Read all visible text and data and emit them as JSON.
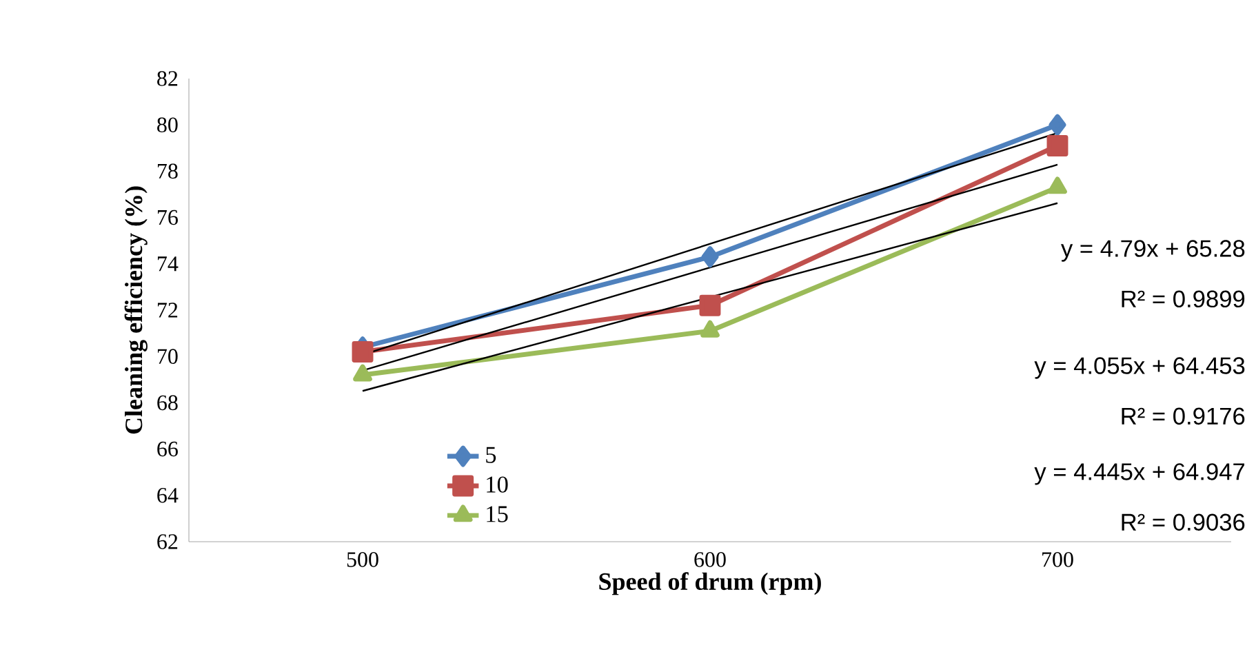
{
  "chart_data": {
    "type": "line",
    "xlabel": "Speed of drum (rpm)",
    "ylabel": "Cleaning efficiency (%)",
    "categories": [
      "500",
      "600",
      "700"
    ],
    "series": [
      {
        "name": "5",
        "color": "#4f81bd",
        "marker": "diamond",
        "values": [
          70.4,
          74.3,
          80.0
        ]
      },
      {
        "name": "10",
        "color": "#c0504d",
        "marker": "square",
        "values": [
          70.2,
          72.2,
          79.1
        ]
      },
      {
        "name": "15",
        "color": "#9bbb59",
        "marker": "triangle",
        "values": [
          69.2,
          71.1,
          77.3
        ]
      },
      {
        "color": "#000000",
        "marker": "none",
        "values": [
          70.07,
          74.86,
          79.65
        ]
      },
      {
        "color": "#000000",
        "marker": "none",
        "values": [
          69.39,
          73.84,
          78.28
        ]
      },
      {
        "color": "#000000",
        "marker": "none",
        "values": [
          68.51,
          72.56,
          76.62
        ]
      }
    ],
    "ylim": [
      62,
      82
    ],
    "yticks": [
      62,
      64,
      66,
      68,
      70,
      72,
      74,
      76,
      78,
      80,
      82
    ],
    "grid": false,
    "legend": "bottom left",
    "annotations": [
      "y = 4.79x + 65.28",
      "R² = 0.9899",
      "y = 4.055x + 64.453",
      "R² = 0.9176",
      "y = 4.445x + 64.947",
      "R² = 0.9036"
    ]
  }
}
